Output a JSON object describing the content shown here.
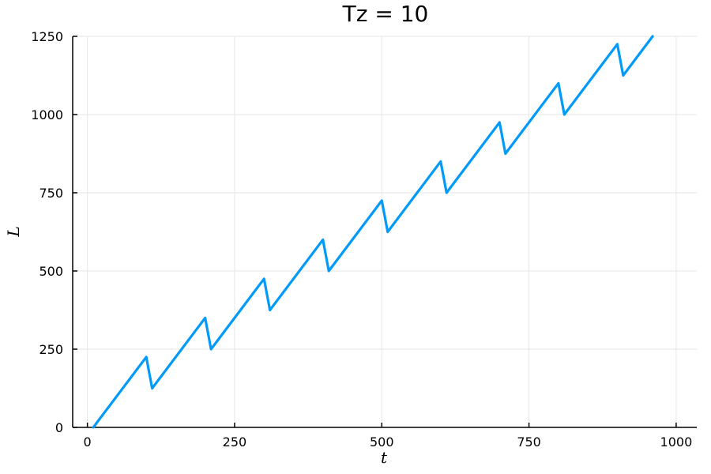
{
  "chart_data": {
    "type": "line",
    "title": "Tz = 10",
    "xlabel": "t",
    "ylabel": "L",
    "xlim": [
      -25,
      1035
    ],
    "ylim": [
      0,
      1250
    ],
    "xticks": [
      0,
      250,
      500,
      750,
      1000
    ],
    "yticks": [
      0,
      250,
      500,
      750,
      1000,
      1250
    ],
    "grid": true,
    "legend": "none",
    "series": [
      {
        "color": "#009af9",
        "x": [
          10,
          100,
          110,
          200,
          210,
          300,
          310,
          400,
          410,
          500,
          510,
          600,
          610,
          700,
          710,
          800,
          810,
          900,
          910,
          960
        ],
        "y": [
          0,
          225,
          125,
          350,
          250,
          475,
          375,
          600,
          500,
          725,
          625,
          850,
          750,
          975,
          875,
          1100,
          1000,
          1225,
          1125,
          1250
        ]
      }
    ]
  }
}
